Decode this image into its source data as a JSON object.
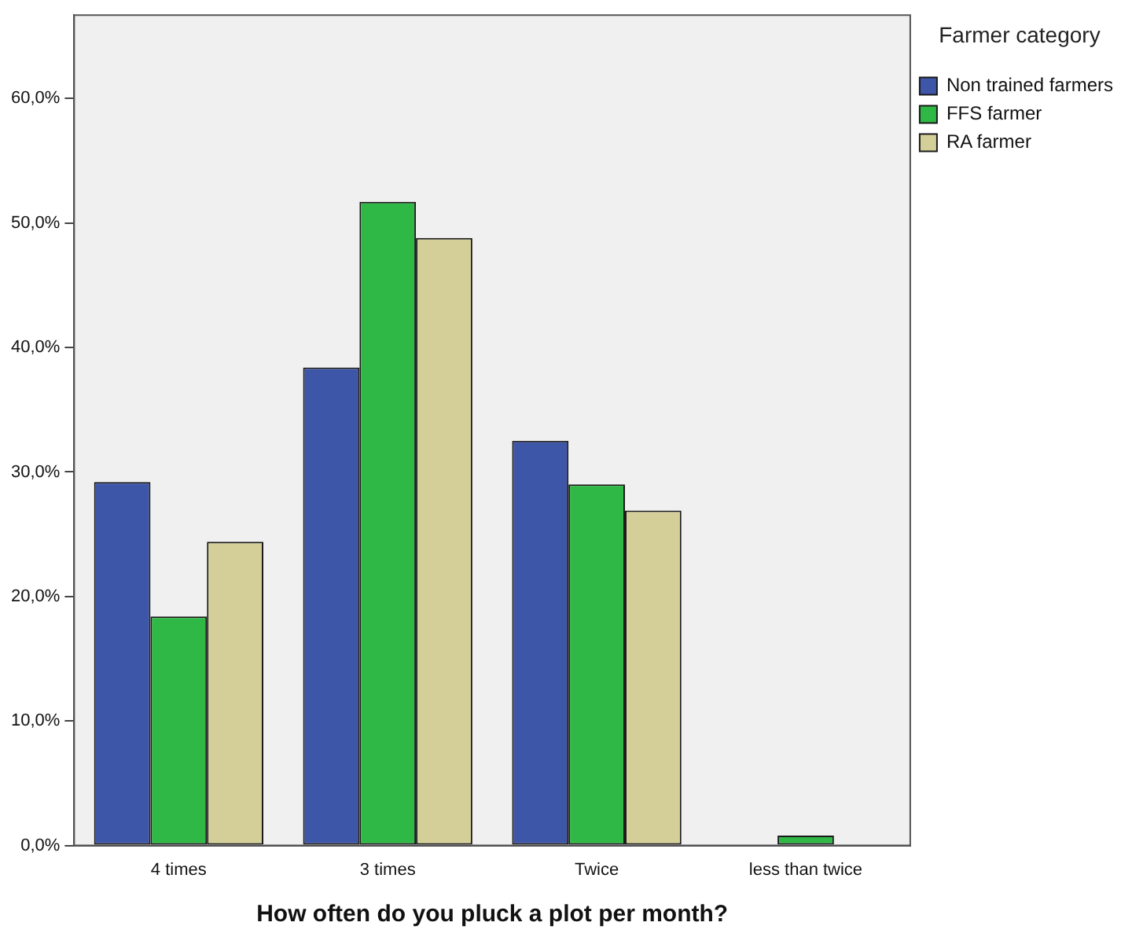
{
  "chart_data": {
    "type": "bar",
    "xlabel": "How often do you pluck a plot per month?",
    "legend_title": "Farmer category",
    "legend": "top right",
    "grid": false,
    "categories": [
      "4 times",
      "3 times",
      "Twice",
      "less than twice"
    ],
    "ylim": [
      0,
      66.7
    ],
    "yticks": [
      {
        "value": 0,
        "label": "0,0%"
      },
      {
        "value": 10,
        "label": "10,0%"
      },
      {
        "value": 20,
        "label": "20,0%"
      },
      {
        "value": 30,
        "label": "30,0%"
      },
      {
        "value": 40,
        "label": "40,0%"
      },
      {
        "value": 50,
        "label": "50,0%"
      },
      {
        "value": 60,
        "label": "60,0%"
      }
    ],
    "series": [
      {
        "name": "Non trained farmers",
        "color": "#3e56a8",
        "values": [
          29.2,
          38.4,
          32.5,
          0
        ]
      },
      {
        "name": "FFS farmer",
        "color": "#2fb846",
        "values": [
          18.4,
          51.7,
          29.0,
          0.8
        ]
      },
      {
        "name": "RA farmer",
        "color": "#d4cf98",
        "values": [
          24.4,
          48.8,
          26.9,
          0
        ]
      }
    ]
  }
}
